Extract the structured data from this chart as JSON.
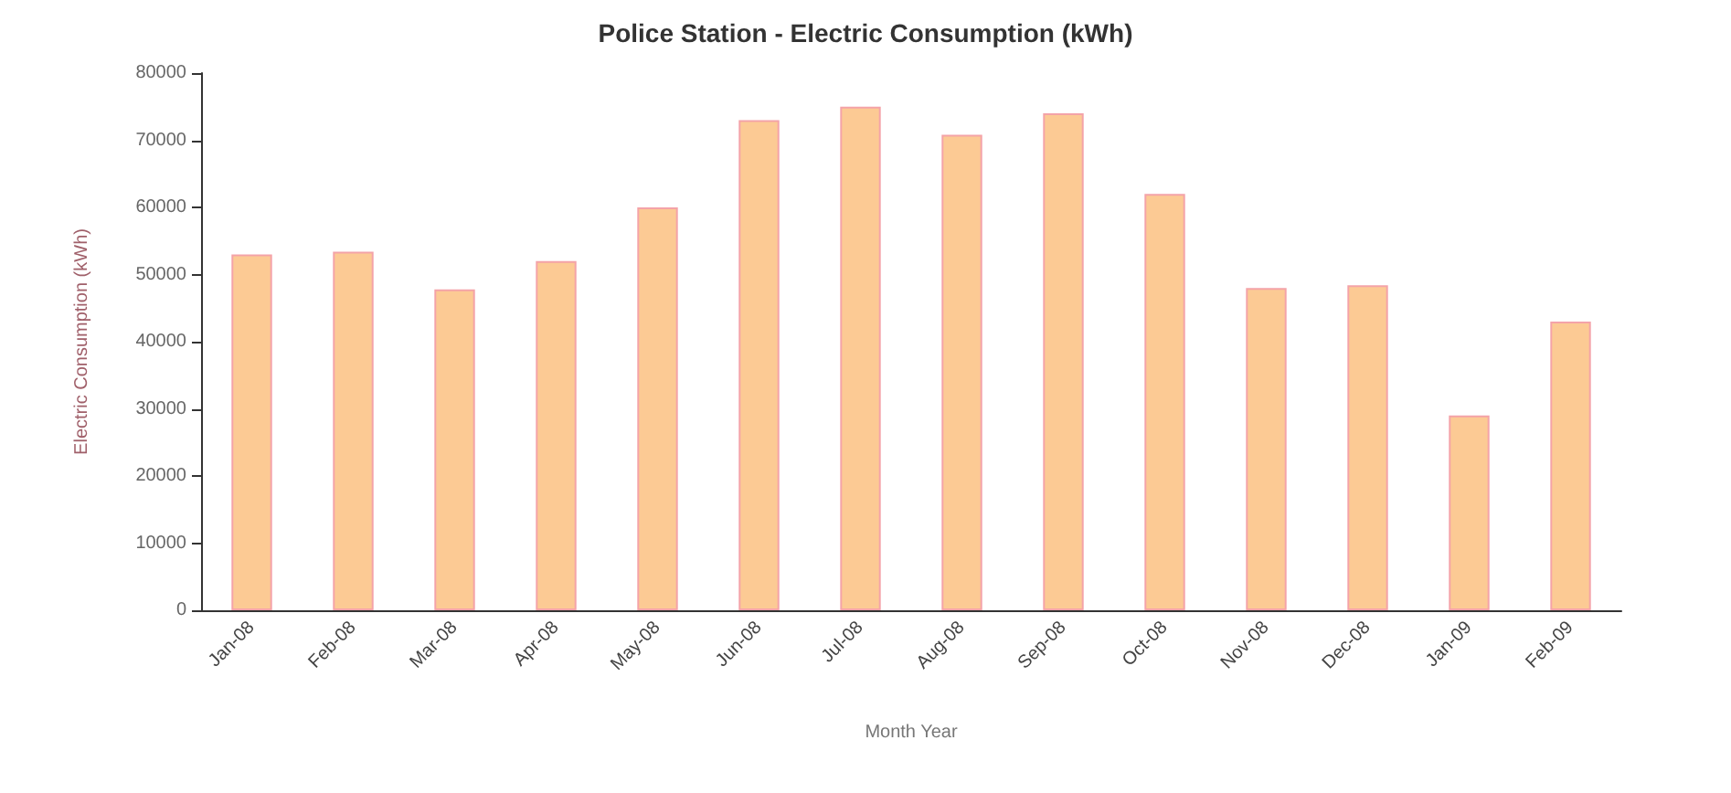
{
  "chart_data": {
    "type": "bar",
    "title": "Police Station - Electric Consumption (kWh)",
    "xlabel": "Month Year",
    "ylabel": "Electric Consumption (kWh)",
    "categories": [
      "Jan-08",
      "Feb-08",
      "Mar-08",
      "Apr-08",
      "May-08",
      "Jun-08",
      "Jul-08",
      "Aug-08",
      "Sep-08",
      "Oct-08",
      "Nov-08",
      "Dec-08",
      "Jan-09",
      "Feb-09"
    ],
    "values": [
      53000,
      53400,
      47800,
      52000,
      60000,
      73000,
      75000,
      70800,
      74000,
      62000,
      48000,
      48400,
      29000,
      43000
    ],
    "color": "#fcca94",
    "ylim": [
      0,
      80000
    ],
    "yticks": [
      0,
      10000,
      20000,
      30000,
      40000,
      50000,
      60000,
      70000,
      80000
    ],
    "grid": false
  }
}
